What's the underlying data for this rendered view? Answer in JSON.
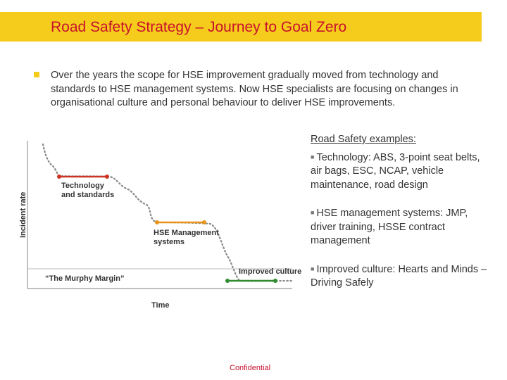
{
  "header": {
    "title": "Road Safety Strategy – Journey to Goal Zero"
  },
  "intro": {
    "text": "Over the years the scope for HSE improvement gradually moved from technology and standards to HSE management systems. Now HSE specialists are focusing on changes in organisational culture and personal behaviour to deliver HSE improvements."
  },
  "diagram": {
    "y_axis_label": "Incident rate",
    "x_axis_label": "Time",
    "stage_technology": [
      "Technology",
      "and standards"
    ],
    "stage_hse": [
      "HSE Management",
      "systems"
    ],
    "stage_culture": "Improved culture",
    "murphy_margin": "“The Murphy Margin”",
    "colors": {
      "technology": "#cc3322",
      "hse": "#e8941a",
      "culture": "#2e8b2e",
      "curve": "#888888",
      "axis": "#999999"
    }
  },
  "examples": {
    "heading": "Road Safety examples:",
    "items": [
      "Technology: ABS, 3-point seat belts, air bags, ESC, NCAP, vehicle maintenance, road design",
      "HSE management systems: JMP, driver training, HSSE contract management",
      "Improved culture: Hearts and Minds – Driving Safely"
    ]
  },
  "footer": {
    "text": "Confidential"
  },
  "colors": {
    "title_bar": "#f5cc1b",
    "title_text": "#c8102e",
    "footer_text": "#c8102e"
  }
}
